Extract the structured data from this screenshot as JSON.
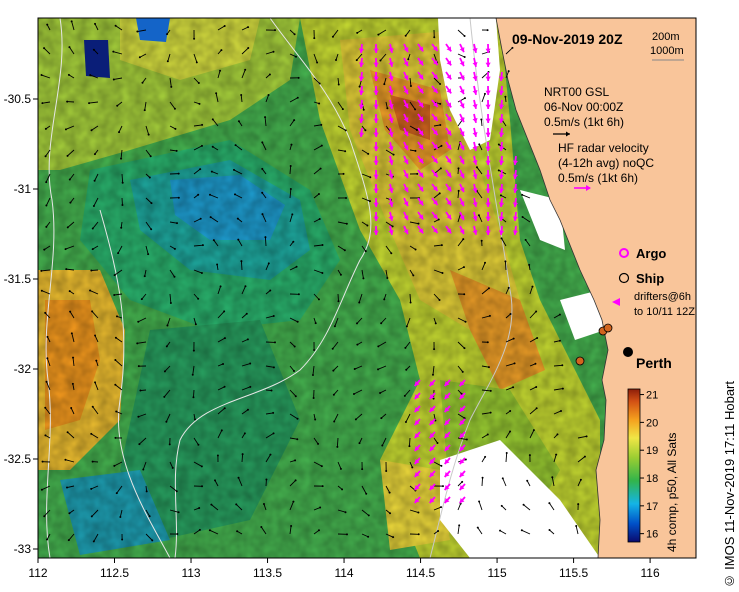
{
  "map": {
    "title": "09-Nov-2019 20Z",
    "x_ticks": [
      "112",
      "112.5",
      "113",
      "113.5",
      "114",
      "114.5",
      "115",
      "115.5",
      "116"
    ],
    "y_ticks": [
      "-30.5",
      "-31",
      "-31.5",
      "-32",
      "-32.5",
      "-33"
    ],
    "x_range": [
      112,
      116.3
    ],
    "y_range": [
      -33.05,
      -30.05
    ],
    "depth_contours": [
      "200m",
      "1000m"
    ],
    "legend": {
      "gsl_line1": "NRT00 GSL",
      "gsl_line2": "06-Nov 00:00Z",
      "gsl_line3": "0.5m/s (1kt 6h)",
      "hf_line1": "HF radar velocity",
      "hf_line2": "(4-12h avg) noQC",
      "hf_line3": "0.5m/s (1kt 6h)",
      "argo": "Argo",
      "ship": "Ship",
      "drifters_line1": "drifters@6h",
      "drifters_line2": "to 10/11 12Z"
    },
    "city": "Perth",
    "colorbar": {
      "label": "4h comp, p50, All Sats",
      "ticks": [
        "21",
        "20",
        "19",
        "18",
        "17",
        "16"
      ],
      "min": 15.7,
      "max": 21.2
    },
    "credit": "© IMOS 11-Nov-2019 17:11 Hobart",
    "colors": {
      "land": "#f9c59a",
      "hf_arrows": "#ff00ff",
      "gsl_arrows": "#000000"
    }
  }
}
